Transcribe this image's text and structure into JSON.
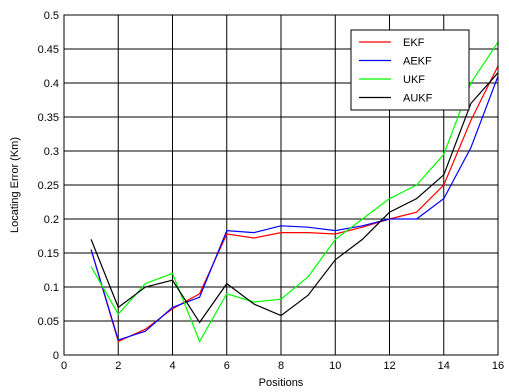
{
  "chart_data": {
    "type": "line",
    "xlabel": "Positions",
    "ylabel": "Locating Error (Km)",
    "xlim": [
      0,
      16
    ],
    "ylim": [
      0,
      0.5
    ],
    "xticks": [
      0,
      2,
      4,
      6,
      8,
      10,
      12,
      14,
      16
    ],
    "yticks": [
      0,
      0.05,
      0.1,
      0.15,
      0.2,
      0.25,
      0.3,
      0.35,
      0.4,
      0.45,
      0.5
    ],
    "xtick_labels": [
      "0",
      "2",
      "4",
      "6",
      "8",
      "10",
      "12",
      "14",
      "16"
    ],
    "ytick_labels": [
      "0",
      "0.05",
      "0.1",
      "0.15",
      "0.2",
      "0.25",
      "0.3",
      "0.35",
      "0.4",
      "0.45",
      "0.5"
    ],
    "grid": true,
    "legend_position": "top-right",
    "x": [
      1,
      2,
      3,
      4,
      5,
      6,
      7,
      8,
      9,
      10,
      11,
      12,
      13,
      14,
      15,
      16
    ],
    "series": [
      {
        "name": "EKF",
        "color": "#ff0000",
        "values": [
          0.155,
          0.02,
          0.038,
          0.068,
          0.09,
          0.178,
          0.172,
          0.18,
          0.18,
          0.178,
          0.188,
          0.2,
          0.21,
          0.25,
          0.345,
          0.425
        ]
      },
      {
        "name": "AEKF",
        "color": "#0000ff",
        "values": [
          0.155,
          0.022,
          0.035,
          0.07,
          0.085,
          0.183,
          0.18,
          0.19,
          0.188,
          0.183,
          0.19,
          0.2,
          0.2,
          0.23,
          0.305,
          0.41
        ]
      },
      {
        "name": "UKF",
        "color": "#00ff00",
        "values": [
          0.13,
          0.06,
          0.105,
          0.12,
          0.02,
          0.09,
          0.078,
          0.082,
          0.115,
          0.17,
          0.2,
          0.23,
          0.25,
          0.295,
          0.4,
          0.46
        ]
      },
      {
        "name": "AUKF",
        "color": "#000000",
        "values": [
          0.17,
          0.07,
          0.1,
          0.11,
          0.048,
          0.105,
          0.075,
          0.058,
          0.088,
          0.14,
          0.17,
          0.21,
          0.23,
          0.265,
          0.37,
          0.415
        ]
      }
    ]
  }
}
